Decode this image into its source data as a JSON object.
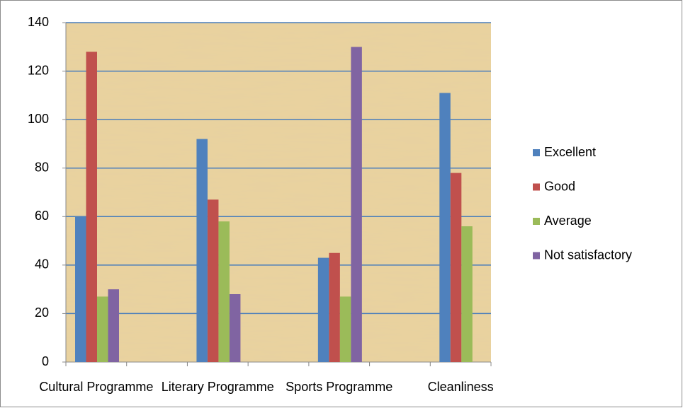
{
  "chart_data": {
    "type": "bar",
    "categories": [
      "Cultural Programme",
      null,
      "Literary Programme",
      null,
      "Sports Programme",
      null,
      "Cleanliness"
    ],
    "series": [
      {
        "name": "Excellent",
        "color": "#4f81bd",
        "values": [
          60,
          null,
          92,
          null,
          43,
          null,
          111
        ]
      },
      {
        "name": "Good",
        "color": "#c0504d",
        "values": [
          128,
          null,
          67,
          null,
          45,
          null,
          78
        ]
      },
      {
        "name": "Average",
        "color": "#9bbb59",
        "values": [
          27,
          null,
          58,
          null,
          27,
          null,
          56
        ]
      },
      {
        "name": "Not satisfactory",
        "color": "#8064a2",
        "values": [
          30,
          null,
          28,
          null,
          130,
          null,
          null
        ]
      }
    ],
    "ylim": [
      0,
      140
    ],
    "yticks": [
      0,
      20,
      40,
      60,
      80,
      100,
      120,
      140
    ],
    "grid": true,
    "legend": "right"
  }
}
